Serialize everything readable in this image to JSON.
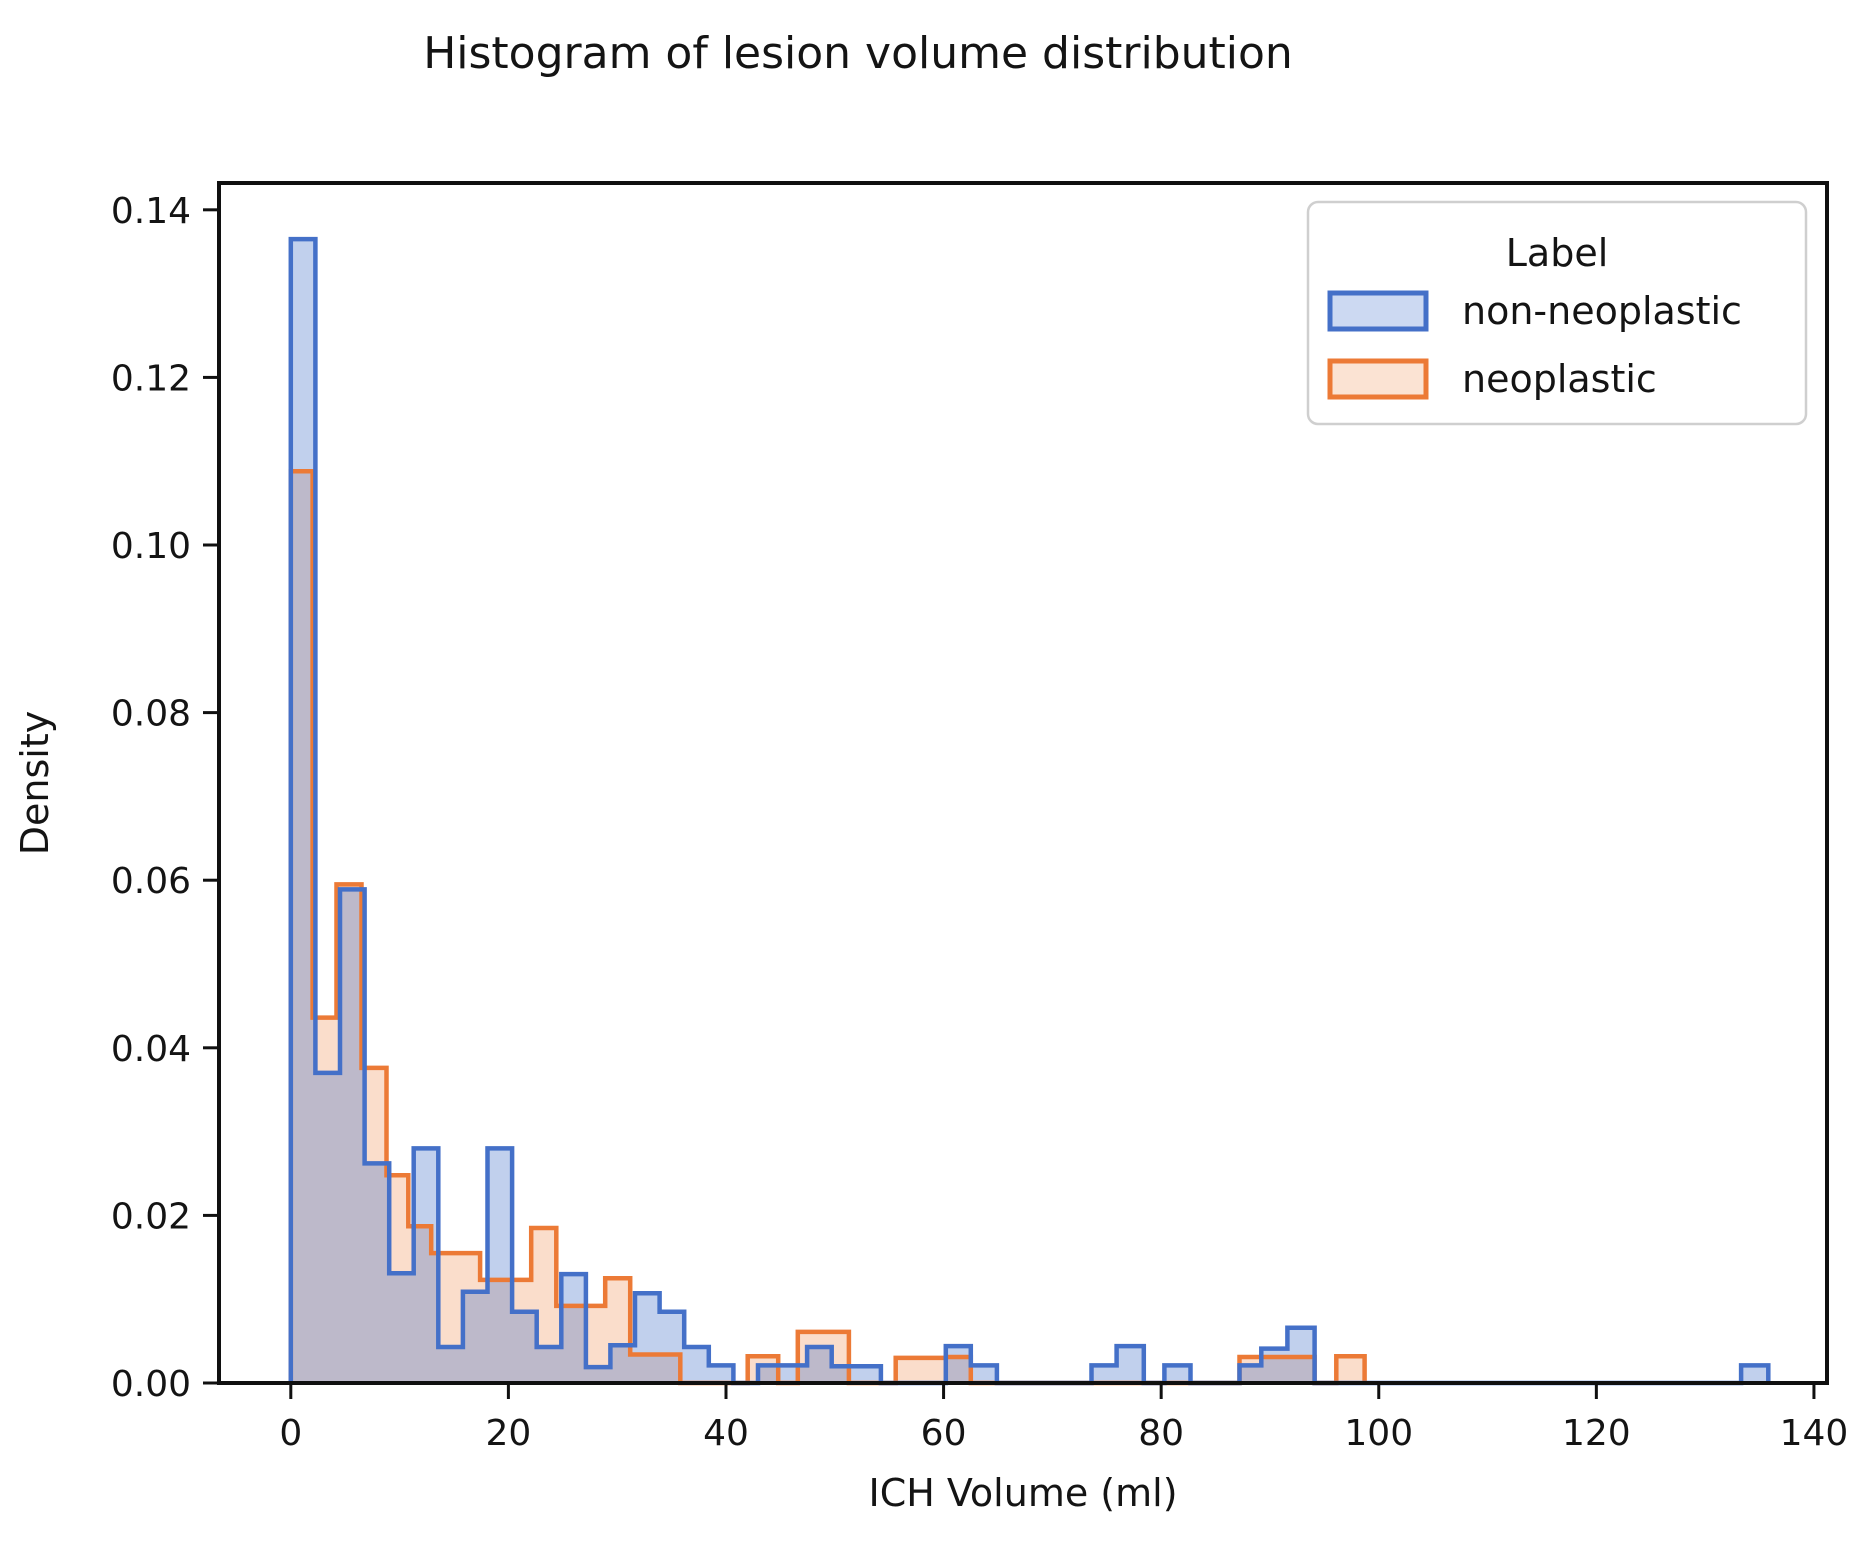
{
  "title": "Histogram of lesion volume distribution",
  "x_axis": {
    "label": "ICH Volume (ml)",
    "tick_values": [
      0,
      20,
      40,
      60,
      80,
      100,
      120,
      140
    ],
    "tick_labels": [
      "0",
      "20",
      "40",
      "60",
      "80",
      "100",
      "120",
      "140"
    ]
  },
  "y_axis": {
    "label": "Density",
    "tick_values": [
      0.0,
      0.02,
      0.04,
      0.06,
      0.08,
      0.1,
      0.12,
      0.14
    ],
    "tick_labels": [
      "0.00",
      "0.02",
      "0.04",
      "0.06",
      "0.08",
      "0.10",
      "0.12",
      "0.14"
    ]
  },
  "legend": {
    "title": "Label",
    "items": [
      {
        "label": "non-neoplastic",
        "edge_color": "#4470c8",
        "swatch_fill": "#ccd9f2"
      },
      {
        "label": "neoplastic",
        "edge_color": "#ec7a36",
        "swatch_fill": "#fbe3d3"
      }
    ]
  },
  "chart_data": {
    "type": "histogram-step-density",
    "xlabel": "ICH Volume (ml)",
    "ylabel": "Density",
    "xlim": [
      -6.6,
      141.2
    ],
    "ylim": [
      0,
      0.1432
    ],
    "grid": false,
    "legend_position": "upper right",
    "bin_format": "[x_start_ml, x_end_ml, density]",
    "series": [
      {
        "name": "neoplastic",
        "edge_color": "#ec7a36",
        "fill_color": "rgba(236,122,54,0.26)",
        "bins": [
          [
            0.0,
            2.0,
            0.1088
          ],
          [
            2.0,
            4.2,
            0.0436
          ],
          [
            4.2,
            6.5,
            0.0595
          ],
          [
            6.5,
            8.8,
            0.0376
          ],
          [
            8.8,
            10.8,
            0.0248
          ],
          [
            10.8,
            12.9,
            0.0187
          ],
          [
            12.9,
            15.2,
            0.0155
          ],
          [
            15.2,
            17.4,
            0.0155
          ],
          [
            17.4,
            19.8,
            0.0123
          ],
          [
            19.8,
            22.1,
            0.0123
          ],
          [
            22.1,
            24.4,
            0.0185
          ],
          [
            24.4,
            26.6,
            0.0092
          ],
          [
            26.6,
            28.9,
            0.0092
          ],
          [
            28.9,
            31.2,
            0.0125
          ],
          [
            31.2,
            33.5,
            0.0034
          ],
          [
            33.5,
            35.8,
            0.0034
          ],
          [
            42.0,
            44.8,
            0.0032
          ],
          [
            46.6,
            48.9,
            0.0061
          ],
          [
            48.9,
            51.3,
            0.0061
          ],
          [
            55.6,
            57.9,
            0.003
          ],
          [
            57.9,
            60.2,
            0.003
          ],
          [
            60.2,
            62.5,
            0.0031
          ],
          [
            87.2,
            89.5,
            0.0031
          ],
          [
            89.5,
            91.8,
            0.0031
          ],
          [
            91.8,
            94.1,
            0.0031
          ],
          [
            96.1,
            98.7,
            0.0032
          ]
        ]
      },
      {
        "name": "non-neoplastic",
        "edge_color": "#4470c8",
        "fill_color": "rgba(68,112,200,0.33)",
        "bins": [
          [
            0.0,
            2.26,
            0.1365
          ],
          [
            2.26,
            4.52,
            0.037
          ],
          [
            4.52,
            6.78,
            0.0589
          ],
          [
            6.78,
            9.04,
            0.0262
          ],
          [
            9.04,
            11.3,
            0.0131
          ],
          [
            11.3,
            13.56,
            0.028
          ],
          [
            13.56,
            15.82,
            0.0043
          ],
          [
            15.82,
            18.08,
            0.0109
          ],
          [
            18.08,
            20.34,
            0.028
          ],
          [
            20.34,
            22.6,
            0.0085
          ],
          [
            22.6,
            24.86,
            0.0043
          ],
          [
            24.86,
            27.12,
            0.013
          ],
          [
            27.12,
            29.38,
            0.0019
          ],
          [
            29.38,
            31.64,
            0.0045
          ],
          [
            31.64,
            33.9,
            0.0107
          ],
          [
            33.9,
            36.16,
            0.0085
          ],
          [
            36.16,
            38.42,
            0.0043
          ],
          [
            38.42,
            40.68,
            0.0021
          ],
          [
            42.94,
            45.2,
            0.0021
          ],
          [
            45.2,
            47.46,
            0.0021
          ],
          [
            47.46,
            49.72,
            0.0043
          ],
          [
            49.72,
            51.98,
            0.002
          ],
          [
            51.98,
            54.24,
            0.002
          ],
          [
            60.2,
            62.5,
            0.0044
          ],
          [
            62.5,
            64.9,
            0.0021
          ],
          [
            73.6,
            75.9,
            0.0021
          ],
          [
            75.9,
            78.4,
            0.0044
          ],
          [
            80.3,
            82.7,
            0.0021
          ],
          [
            87.2,
            89.2,
            0.0021
          ],
          [
            89.2,
            91.6,
            0.0041
          ],
          [
            91.6,
            94.1,
            0.0066
          ],
          [
            133.3,
            135.8,
            0.0021
          ]
        ]
      }
    ]
  }
}
